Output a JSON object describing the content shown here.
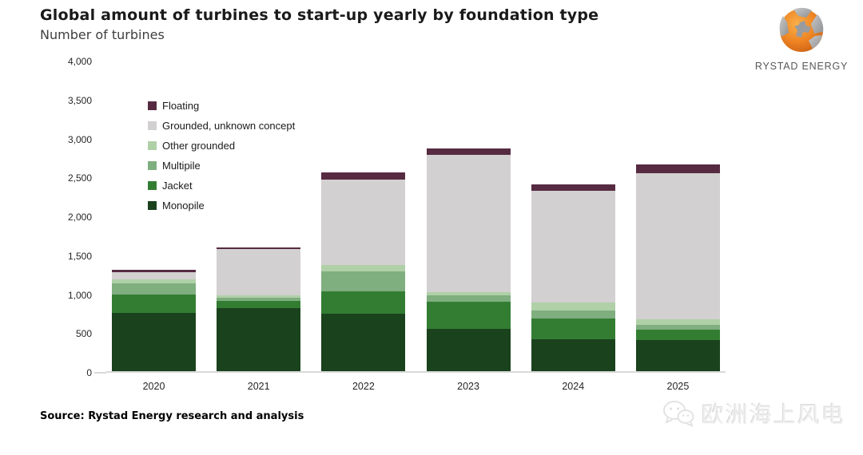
{
  "header": {
    "title": "Global amount of turbines to start-up yearly by foundation type",
    "subtitle": "Number of turbines"
  },
  "logo": {
    "brand": "RYSTAD ENERGY"
  },
  "source": {
    "text": "Source: Rystad Energy research and analysis"
  },
  "watermark": {
    "text": "欧洲海上风电",
    "icon": "wechat-icon"
  },
  "colors": {
    "monopile": "#1a421d",
    "jacket": "#337d33",
    "multipile": "#7fae7f",
    "other_grounded": "#b0d0a8",
    "grounded_unknown": "#d2d0d0",
    "floating": "#562b42",
    "axis_line": "#d9d9d9"
  },
  "chart_data": {
    "type": "bar",
    "stacked": true,
    "title": "Global amount of turbines to start-up yearly by foundation type",
    "ylabel": "Number of turbines",
    "xlabel": "",
    "categories": [
      "2020",
      "2021",
      "2022",
      "2023",
      "2024",
      "2025"
    ],
    "series": [
      {
        "name": "Monopile",
        "color": "#1a421d",
        "values": [
          750,
          810,
          740,
          540,
          410,
          400
        ]
      },
      {
        "name": "Jacket",
        "color": "#337d33",
        "values": [
          230,
          90,
          290,
          350,
          270,
          130
        ]
      },
      {
        "name": "Multipile",
        "color": "#7fae7f",
        "values": [
          150,
          40,
          250,
          80,
          100,
          70
        ]
      },
      {
        "name": "Other grounded",
        "color": "#b0d0a8",
        "values": [
          50,
          30,
          80,
          50,
          100,
          70
        ]
      },
      {
        "name": "Grounded, unknown concept",
        "color": "#d2d0d0",
        "values": [
          90,
          600,
          1100,
          1760,
          1440,
          1870
        ]
      },
      {
        "name": "Floating",
        "color": "#562b42",
        "values": [
          30,
          20,
          95,
          85,
          80,
          115
        ]
      }
    ],
    "totals": [
      1300,
      1590,
      2555,
      2865,
      2400,
      2655
    ],
    "ylim": [
      0,
      4000
    ],
    "yticks": [
      0,
      500,
      1000,
      1500,
      2000,
      2500,
      3000,
      3500,
      4000
    ],
    "grid": false,
    "legend_position": "upper-left-inside",
    "legend_order_top_to_bottom": [
      "Floating",
      "Grounded, unknown concept",
      "Other grounded",
      "Multipile",
      "Jacket",
      "Monopile"
    ]
  }
}
